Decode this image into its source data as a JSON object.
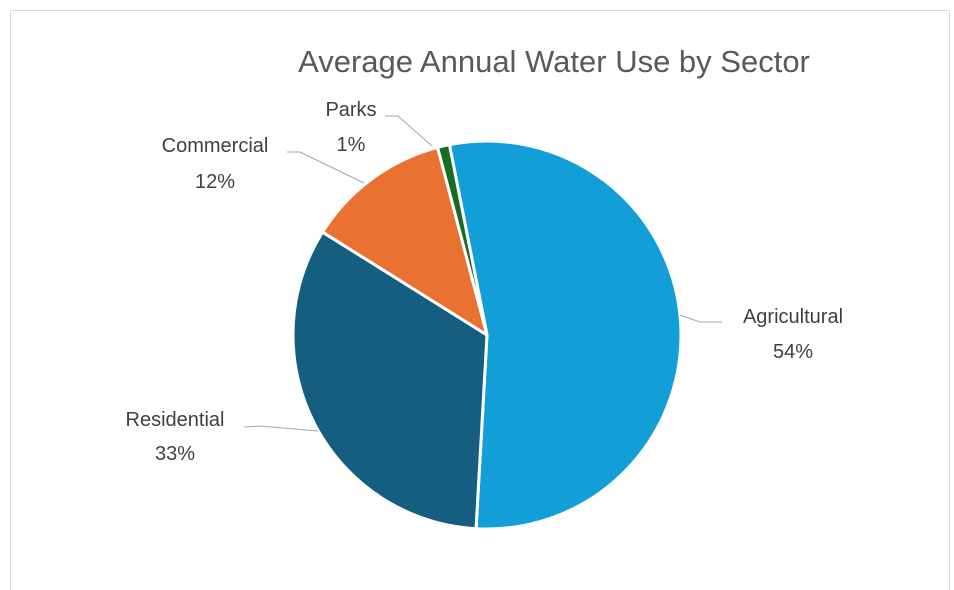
{
  "chart_data": {
    "type": "pie",
    "title": "Average Annual Water Use by Sector",
    "slices": [
      {
        "label": "Agricultural",
        "value": 54,
        "pct_label": "54%",
        "color": "#129fd8"
      },
      {
        "label": "Residential",
        "value": 33,
        "pct_label": "33%",
        "color": "#165e80"
      },
      {
        "label": "Commercial",
        "value": 12,
        "pct_label": "12%",
        "color": "#e97132"
      },
      {
        "label": "Parks",
        "value": 1,
        "pct_label": "1%",
        "color": "#196b24"
      }
    ],
    "legend": "none",
    "data_labels": "outside with leader lines"
  }
}
